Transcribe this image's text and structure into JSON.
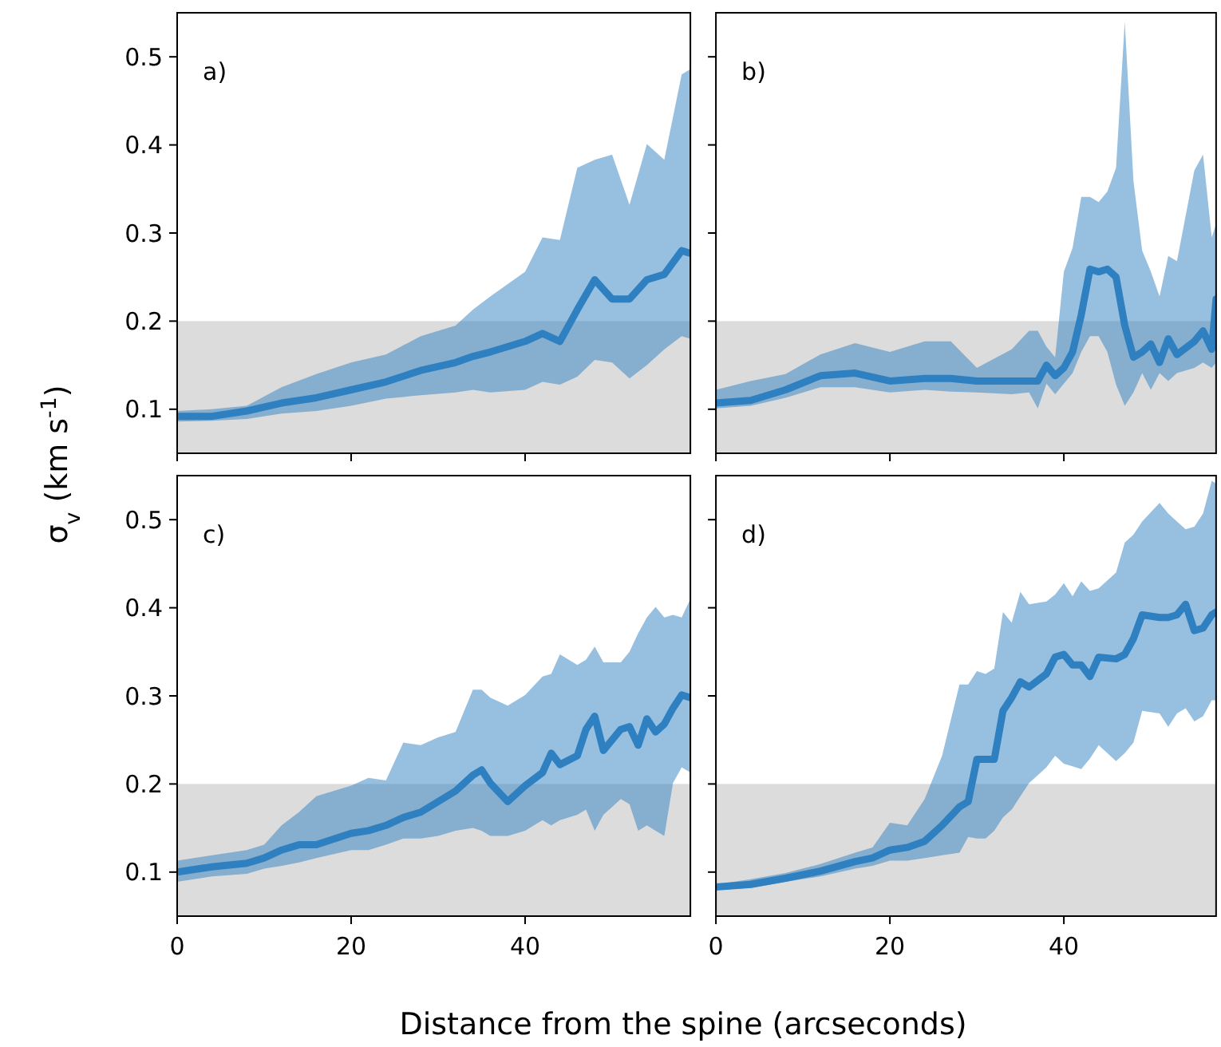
{
  "chart_data": [
    {
      "type": "line",
      "annotations": [
        "a)"
      ],
      "ylabel": "σ$_{v}$ (km s$^{-1}$)",
      "xlim": [
        0,
        59
      ],
      "ylim": [
        0.05,
        0.55
      ],
      "xticks": [
        0,
        20,
        40
      ],
      "yticks": [
        0.1,
        0.2,
        0.3,
        0.4,
        0.5
      ],
      "tick_labels": "y",
      "grid": false,
      "bands": [
        {
          "axis": "y",
          "from": 0.05,
          "to": 0.2,
          "color": "#dcdcdc"
        }
      ],
      "x": [
        0,
        4,
        8,
        12,
        16,
        20,
        24,
        28,
        32,
        34,
        36,
        40,
        42,
        44,
        46,
        48,
        50,
        52,
        54,
        56,
        58,
        59
      ],
      "series": [
        {
          "color": "#2f80c0",
          "values": [
            0.092,
            0.092,
            0.098,
            0.107,
            0.113,
            0.122,
            0.131,
            0.144,
            0.153,
            0.16,
            0.165,
            0.177,
            0.186,
            0.177,
            0.213,
            0.247,
            0.225,
            0.225,
            0.247,
            0.253,
            0.28,
            0.277
          ],
          "lower": [
            0.086,
            0.087,
            0.089,
            0.095,
            0.098,
            0.104,
            0.112,
            0.116,
            0.119,
            0.122,
            0.119,
            0.122,
            0.131,
            0.128,
            0.137,
            0.156,
            0.153,
            0.135,
            0.15,
            0.168,
            0.183,
            0.18
          ],
          "upper": [
            0.098,
            0.1,
            0.104,
            0.125,
            0.14,
            0.153,
            0.162,
            0.183,
            0.195,
            0.213,
            0.228,
            0.256,
            0.295,
            0.292,
            0.374,
            0.383,
            0.389,
            0.332,
            0.401,
            0.383,
            0.48,
            0.486
          ]
        }
      ]
    },
    {
      "type": "line",
      "annotations": [
        "b)"
      ],
      "xlim": [
        0,
        57.5
      ],
      "ylim": [
        0.05,
        0.55
      ],
      "xticks": [
        0,
        20,
        40
      ],
      "yticks": [
        0.1,
        0.2,
        0.3,
        0.4,
        0.5
      ],
      "tick_labels": false,
      "grid": false,
      "bands": [
        {
          "axis": "y",
          "from": 0.05,
          "to": 0.2,
          "color": "#dcdcdc"
        }
      ],
      "x": [
        0,
        4,
        8,
        12,
        16,
        20,
        24,
        27,
        30,
        34,
        36,
        37,
        38,
        39,
        40,
        41,
        42,
        43,
        44,
        45,
        46,
        47,
        48,
        49,
        50,
        51,
        52,
        53,
        55,
        56,
        57,
        57.5
      ],
      "series": [
        {
          "color": "#2f80c0",
          "values": [
            0.107,
            0.11,
            0.122,
            0.138,
            0.141,
            0.132,
            0.135,
            0.135,
            0.132,
            0.132,
            0.132,
            0.132,
            0.15,
            0.138,
            0.147,
            0.165,
            0.207,
            0.259,
            0.256,
            0.259,
            0.25,
            0.195,
            0.159,
            0.165,
            0.174,
            0.153,
            0.18,
            0.162,
            0.177,
            0.189,
            0.168,
            0.225
          ],
          "lower": [
            0.101,
            0.104,
            0.113,
            0.125,
            0.125,
            0.119,
            0.122,
            0.12,
            0.119,
            0.117,
            0.119,
            0.101,
            0.129,
            0.117,
            0.129,
            0.141,
            0.165,
            0.183,
            0.183,
            0.165,
            0.128,
            0.104,
            0.119,
            0.141,
            0.122,
            0.141,
            0.132,
            0.141,
            0.147,
            0.153,
            0.147,
            0.153
          ],
          "upper": [
            0.122,
            0.132,
            0.14,
            0.162,
            0.175,
            0.165,
            0.177,
            0.177,
            0.147,
            0.168,
            0.189,
            0.189,
            0.171,
            0.159,
            0.256,
            0.283,
            0.341,
            0.341,
            0.335,
            0.347,
            0.374,
            0.54,
            0.359,
            0.28,
            0.256,
            0.228,
            0.274,
            0.268,
            0.371,
            0.389,
            0.295,
            0.31
          ]
        }
      ]
    },
    {
      "type": "line",
      "annotations": [
        "c)"
      ],
      "xlabel": "Distance from the spine (arcseconds)",
      "xlim": [
        0,
        59
      ],
      "ylim": [
        0.05,
        0.55
      ],
      "xticks": [
        0,
        20,
        40
      ],
      "yticks": [
        0.1,
        0.2,
        0.3,
        0.4,
        0.5
      ],
      "grid": false,
      "bands": [
        {
          "axis": "y",
          "from": 0.05,
          "to": 0.2,
          "color": "#dcdcdc"
        }
      ],
      "x": [
        0,
        4,
        8,
        10,
        12,
        14,
        16,
        20,
        22,
        24,
        26,
        28,
        30,
        32,
        34,
        35,
        36,
        38,
        40,
        42,
        43,
        44,
        46,
        47,
        48,
        49,
        51,
        52,
        53,
        54,
        55,
        56,
        57,
        58,
        59
      ],
      "series": [
        {
          "color": "#2f80c0",
          "values": [
            0.1,
            0.106,
            0.11,
            0.116,
            0.125,
            0.131,
            0.131,
            0.144,
            0.147,
            0.153,
            0.162,
            0.168,
            0.18,
            0.192,
            0.21,
            0.216,
            0.201,
            0.18,
            0.198,
            0.213,
            0.235,
            0.222,
            0.232,
            0.262,
            0.277,
            0.238,
            0.262,
            0.265,
            0.244,
            0.274,
            0.259,
            0.268,
            0.286,
            0.301,
            0.298
          ],
          "lower": [
            0.089,
            0.095,
            0.098,
            0.104,
            0.107,
            0.111,
            0.116,
            0.125,
            0.125,
            0.131,
            0.138,
            0.138,
            0.141,
            0.147,
            0.15,
            0.147,
            0.141,
            0.141,
            0.147,
            0.159,
            0.153,
            0.159,
            0.165,
            0.171,
            0.147,
            0.165,
            0.183,
            0.177,
            0.147,
            0.153,
            0.147,
            0.141,
            0.201,
            0.219,
            0.213
          ],
          "upper": [
            0.113,
            0.119,
            0.125,
            0.131,
            0.153,
            0.168,
            0.186,
            0.198,
            0.207,
            0.204,
            0.247,
            0.244,
            0.253,
            0.259,
            0.307,
            0.307,
            0.298,
            0.289,
            0.301,
            0.322,
            0.325,
            0.347,
            0.335,
            0.341,
            0.356,
            0.338,
            0.338,
            0.35,
            0.371,
            0.389,
            0.401,
            0.389,
            0.392,
            0.389,
            0.41
          ]
        }
      ]
    },
    {
      "type": "line",
      "annotations": [
        "d)"
      ],
      "xlim": [
        0,
        57.5
      ],
      "ylim": [
        0.05,
        0.55
      ],
      "xticks": [
        0,
        20,
        40
      ],
      "yticks": [
        0.1,
        0.2,
        0.3,
        0.4,
        0.5
      ],
      "tick_labels": "x",
      "grid": false,
      "bands": [
        {
          "axis": "y",
          "from": 0.05,
          "to": 0.2,
          "color": "#dcdcdc"
        }
      ],
      "x": [
        0,
        4,
        8,
        12,
        16,
        18,
        20,
        22,
        24,
        26,
        28,
        29,
        30,
        31,
        32,
        33,
        34,
        35,
        36,
        38,
        39,
        40,
        41,
        42,
        43,
        44,
        46,
        47,
        48,
        49,
        51,
        52,
        53,
        54,
        55,
        56,
        57,
        57.5
      ],
      "series": [
        {
          "color": "#2f80c0",
          "values": [
            0.083,
            0.086,
            0.093,
            0.101,
            0.112,
            0.116,
            0.125,
            0.128,
            0.135,
            0.153,
            0.174,
            0.18,
            0.228,
            0.228,
            0.228,
            0.283,
            0.298,
            0.316,
            0.31,
            0.325,
            0.344,
            0.347,
            0.335,
            0.335,
            0.322,
            0.344,
            0.342,
            0.347,
            0.365,
            0.392,
            0.389,
            0.389,
            0.392,
            0.404,
            0.374,
            0.377,
            0.392,
            0.395
          ],
          "lower": [
            0.08,
            0.082,
            0.089,
            0.095,
            0.104,
            0.107,
            0.113,
            0.113,
            0.116,
            0.119,
            0.122,
            0.14,
            0.138,
            0.138,
            0.147,
            0.162,
            0.171,
            0.186,
            0.201,
            0.219,
            0.232,
            0.223,
            0.22,
            0.217,
            0.229,
            0.244,
            0.226,
            0.235,
            0.247,
            0.283,
            0.28,
            0.265,
            0.28,
            0.286,
            0.271,
            0.277,
            0.295,
            0.295
          ],
          "upper": [
            0.086,
            0.092,
            0.099,
            0.109,
            0.122,
            0.128,
            0.156,
            0.153,
            0.183,
            0.232,
            0.313,
            0.313,
            0.328,
            0.325,
            0.331,
            0.395,
            0.383,
            0.418,
            0.404,
            0.407,
            0.415,
            0.428,
            0.413,
            0.43,
            0.419,
            0.422,
            0.44,
            0.474,
            0.483,
            0.498,
            0.519,
            0.507,
            0.498,
            0.489,
            0.492,
            0.507,
            0.544,
            0.541
          ]
        }
      ]
    }
  ]
}
